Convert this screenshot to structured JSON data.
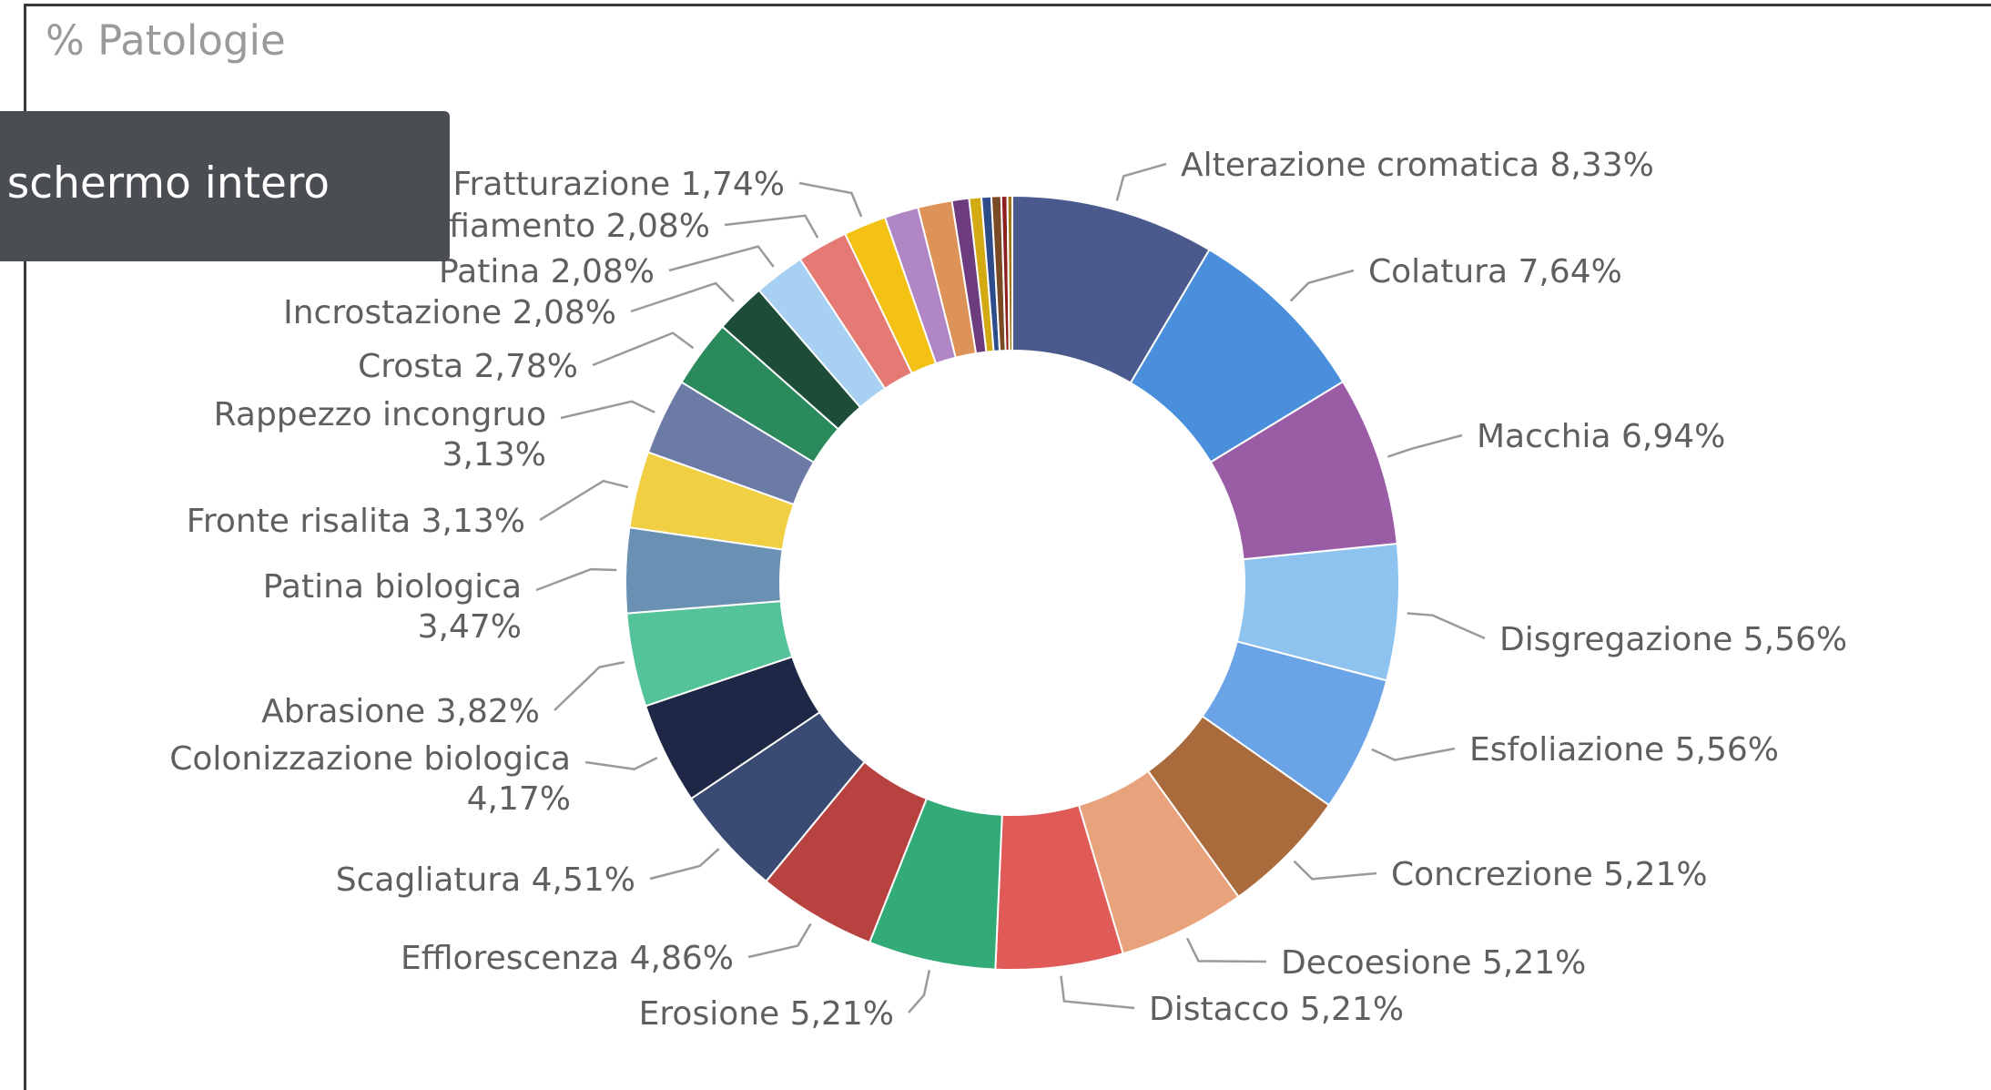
{
  "tooltip": {
    "text": "Esci da schermo intero"
  },
  "chart_data": {
    "type": "pie",
    "title": "% Patologie",
    "donut": true,
    "slices": [
      {
        "label": "Alterazione cromatica",
        "pct_text": "8,33%",
        "value": 8.33,
        "color": "#4a5a8c"
      },
      {
        "label": "Colatura",
        "pct_text": "7,64%",
        "value": 7.64,
        "color": "#4a8fdb"
      },
      {
        "label": "Macchia",
        "pct_text": "6,94%",
        "value": 6.94,
        "color": "#9b5ca6"
      },
      {
        "label": "Disgregazione",
        "pct_text": "5,56%",
        "value": 5.56,
        "color": "#8ec3ef"
      },
      {
        "label": "Esfoliazione",
        "pct_text": "5,56%",
        "value": 5.56,
        "color": "#6aa3e6"
      },
      {
        "label": "Concrezione",
        "pct_text": "5,21%",
        "value": 5.21,
        "color": "#a96a3c"
      },
      {
        "label": "Decoesione",
        "pct_text": "5,21%",
        "value": 5.21,
        "color": "#e8a27c"
      },
      {
        "label": "Distacco",
        "pct_text": "5,21%",
        "value": 5.21,
        "color": "#e05a57"
      },
      {
        "label": "Erosione",
        "pct_text": "5,21%",
        "value": 5.21,
        "color": "#33ab79"
      },
      {
        "label": "Efflorescenza",
        "pct_text": "4,86%",
        "value": 4.86,
        "color": "#b84240"
      },
      {
        "label": "Scagliatura",
        "pct_text": "4,51%",
        "value": 4.51,
        "color": "#394a73"
      },
      {
        "label": "Colonizzazione biologica",
        "pct_text": "4,17%",
        "value": 4.17,
        "color": "#1e2745"
      },
      {
        "label": "Abrasione",
        "pct_text": "3,82%",
        "value": 3.82,
        "color": "#55c39a"
      },
      {
        "label": "Patina biologica",
        "pct_text": "3,47%",
        "value": 3.47,
        "color": "#6a90b4"
      },
      {
        "label": "Fronte risalita",
        "pct_text": "3,13%",
        "value": 3.13,
        "color": "#f1cf42"
      },
      {
        "label": "Rappezzo incongruo",
        "pct_text": "3,13%",
        "value": 3.13,
        "color": "#6c7aa6"
      },
      {
        "label": "Crosta",
        "pct_text": "2,78%",
        "value": 2.78,
        "color": "#2b8a5c"
      },
      {
        "label": "Incrostazione",
        "pct_text": "2,08%",
        "value": 2.08,
        "color": "#1d4d39"
      },
      {
        "label": "Patina",
        "pct_text": "2,08%",
        "value": 2.08,
        "color": "#a8d0f2"
      },
      {
        "label": "Rigonfiamento",
        "pct_text": "2,08%",
        "value": 2.08,
        "color": "#e57a74"
      },
      {
        "label": "Fratturazione",
        "pct_text": "1,74%",
        "value": 1.74,
        "color": "#f3c214"
      },
      {
        "value": 1.39,
        "color": "#b086c4"
      },
      {
        "value": 1.39,
        "color": "#dd9257"
      },
      {
        "value": 0.7,
        "color": "#6d3c7e"
      },
      {
        "value": 0.5,
        "color": "#d4aa13"
      },
      {
        "value": 0.4,
        "color": "#2c4c8a"
      },
      {
        "value": 0.4,
        "color": "#7a4a25"
      },
      {
        "value": 0.25,
        "color": "#8c1f1f"
      },
      {
        "value": 0.2,
        "color": "#a07a1a"
      }
    ]
  }
}
